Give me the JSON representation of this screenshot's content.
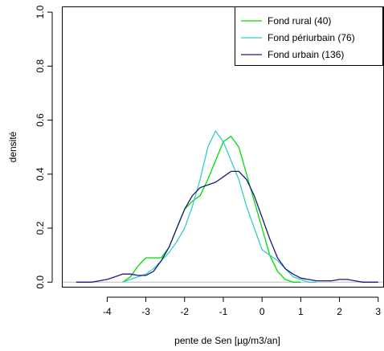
{
  "chart_data": {
    "type": "line",
    "title": "",
    "xlabel": "pente de Sen [µg/m3/an]",
    "ylabel": "densité",
    "xlim": [
      -4.9,
      3.15
    ],
    "ylim": [
      -0.02,
      1.03
    ],
    "x_ticks": [
      -4,
      -3,
      -2,
      -1,
      0,
      1,
      2,
      3
    ],
    "y_ticks": [
      0.0,
      0.2,
      0.4,
      0.6,
      0.8,
      1.0
    ],
    "x_tick_labels": [
      "-4",
      "-3",
      "-2",
      "-1",
      "0",
      "1",
      "2",
      "3"
    ],
    "y_tick_labels": [
      "0.0",
      "0.2",
      "0.4",
      "0.6",
      "0.8",
      "1.0"
    ],
    "grid": false,
    "baseline": 0,
    "legend_position": "top-right",
    "series": [
      {
        "name": "Fond rural (40)",
        "color": "#00dd00",
        "x": [
          -3.6,
          -3.4,
          -3.2,
          -3.0,
          -2.8,
          -2.6,
          -2.4,
          -2.2,
          -2.0,
          -1.8,
          -1.6,
          -1.4,
          -1.2,
          -1.0,
          -0.8,
          -0.6,
          -0.4,
          -0.2,
          0.0,
          0.2,
          0.4,
          0.6,
          0.8,
          1.0
        ],
        "values": [
          0.0,
          0.02,
          0.06,
          0.09,
          0.09,
          0.09,
          0.13,
          0.2,
          0.27,
          0.3,
          0.32,
          0.38,
          0.45,
          0.52,
          0.54,
          0.5,
          0.4,
          0.3,
          0.2,
          0.1,
          0.04,
          0.01,
          0.0,
          0.0
        ]
      },
      {
        "name": "Fond périurbain (76)",
        "color": "#33cccc",
        "x": [
          -3.6,
          -3.4,
          -3.2,
          -3.0,
          -2.8,
          -2.6,
          -2.4,
          -2.2,
          -2.0,
          -1.8,
          -1.6,
          -1.4,
          -1.2,
          -1.0,
          -0.8,
          -0.6,
          -0.4,
          -0.2,
          0.0,
          0.2,
          0.4,
          0.6,
          0.8,
          1.0,
          1.2,
          1.4
        ],
        "values": [
          0.0,
          0.01,
          0.02,
          0.03,
          0.05,
          0.08,
          0.11,
          0.15,
          0.2,
          0.28,
          0.38,
          0.5,
          0.56,
          0.52,
          0.45,
          0.38,
          0.28,
          0.2,
          0.12,
          0.1,
          0.08,
          0.05,
          0.02,
          0.01,
          0.0,
          0.0
        ]
      },
      {
        "name": "Fond urbain (136)",
        "color": "#1a1a80",
        "x": [
          -4.8,
          -4.6,
          -4.4,
          -4.2,
          -4.0,
          -3.8,
          -3.6,
          -3.4,
          -3.2,
          -3.0,
          -2.8,
          -2.6,
          -2.4,
          -2.2,
          -2.0,
          -1.8,
          -1.6,
          -1.4,
          -1.2,
          -1.0,
          -0.8,
          -0.6,
          -0.4,
          -0.2,
          0.0,
          0.2,
          0.4,
          0.6,
          0.8,
          1.0,
          1.2,
          1.4,
          1.6,
          1.8,
          2.0,
          2.2,
          2.4,
          2.6,
          2.8,
          3.0
        ],
        "values": [
          0.0,
          0.0,
          0.0,
          0.005,
          0.01,
          0.02,
          0.03,
          0.03,
          0.025,
          0.025,
          0.04,
          0.08,
          0.13,
          0.2,
          0.27,
          0.32,
          0.35,
          0.36,
          0.37,
          0.39,
          0.41,
          0.41,
          0.38,
          0.32,
          0.24,
          0.16,
          0.09,
          0.05,
          0.03,
          0.015,
          0.01,
          0.005,
          0.005,
          0.005,
          0.01,
          0.01,
          0.005,
          0.0,
          0.0,
          0.0
        ]
      }
    ]
  },
  "colors": {
    "baseline": "#bbbbbb",
    "axis": "#000000"
  }
}
